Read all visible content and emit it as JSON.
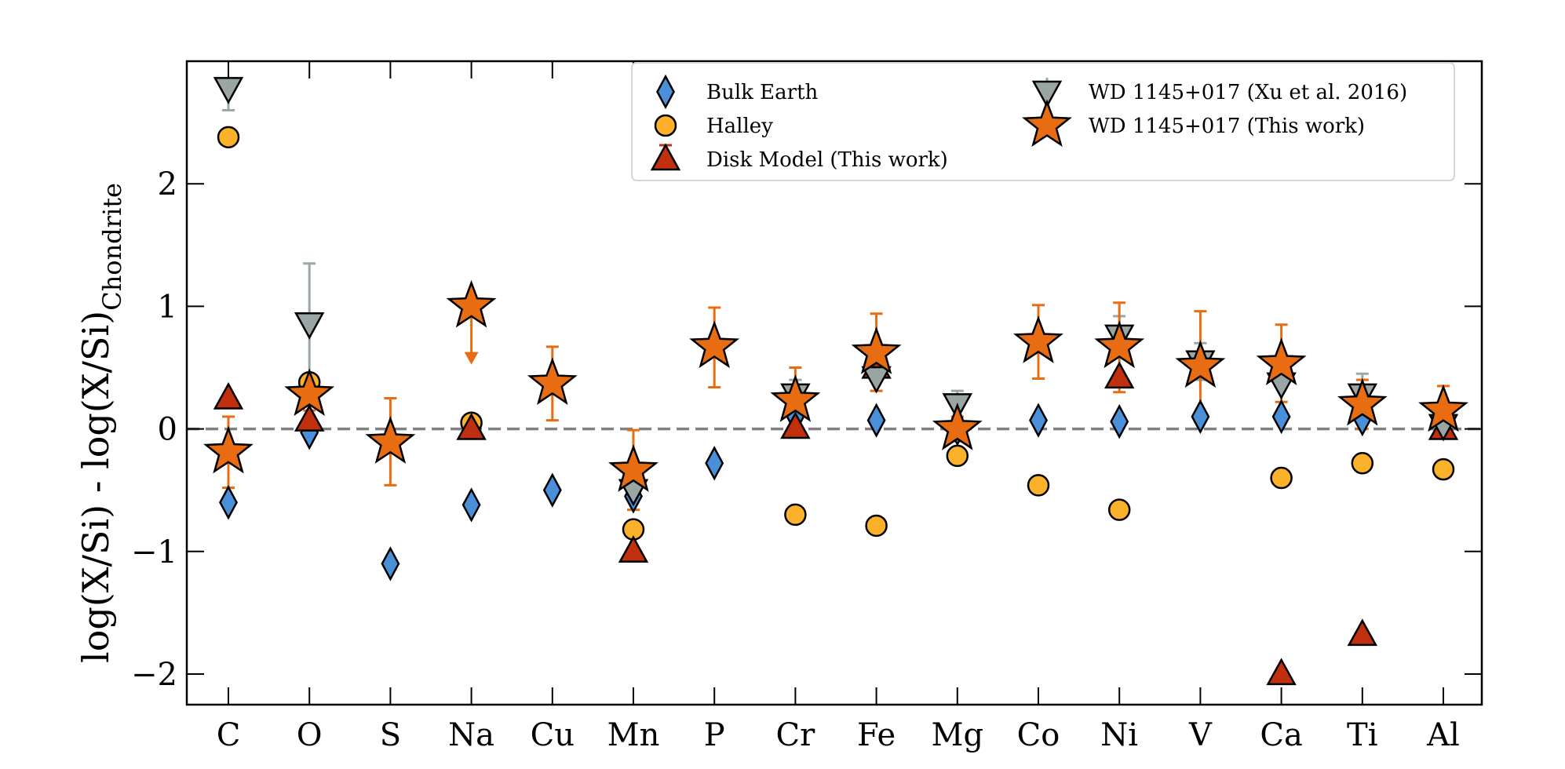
{
  "chart_data": {
    "type": "scatter",
    "ylabel_main": "log(X/Si) - log(X/Si)",
    "ylabel_sub": "Chondrite",
    "xlabel": "",
    "ylim": [
      -2.25,
      3.0
    ],
    "yticks": [
      -2,
      -1,
      0,
      1,
      2
    ],
    "ytick_labels": [
      "−2",
      "−1",
      "0",
      "1",
      "2"
    ],
    "reference_line": 0,
    "categories": [
      "C",
      "O",
      "S",
      "Na",
      "Cu",
      "Mn",
      "P",
      "Cr",
      "Fe",
      "Mg",
      "Co",
      "Ni",
      "V",
      "Ca",
      "Ti",
      "Al"
    ],
    "legend_position": "top-right",
    "legend": [
      "Bulk Earth",
      "Halley",
      "Disk Model (This work)",
      "WD 1145+017 (Xu et al. 2016)",
      "WD 1145+017 (This work)"
    ],
    "series": [
      {
        "name": "Bulk Earth",
        "marker": "diamond",
        "color": "#4a90d9",
        "points": [
          {
            "cat": "C",
            "y": -0.6
          },
          {
            "cat": "O",
            "y": -0.03
          },
          {
            "cat": "S",
            "y": -1.1
          },
          {
            "cat": "Na",
            "y": -0.62
          },
          {
            "cat": "Cu",
            "y": -0.5
          },
          {
            "cat": "Mn",
            "y": -0.55
          },
          {
            "cat": "P",
            "y": -0.28
          },
          {
            "cat": "Cr",
            "y": 0.1
          },
          {
            "cat": "Fe",
            "y": 0.07
          },
          {
            "cat": "Mg",
            "y": 0.0
          },
          {
            "cat": "Co",
            "y": 0.07
          },
          {
            "cat": "Ni",
            "y": 0.06
          },
          {
            "cat": "V",
            "y": 0.1
          },
          {
            "cat": "Ca",
            "y": 0.1
          },
          {
            "cat": "Ti",
            "y": 0.08
          },
          {
            "cat": "Al",
            "y": 0.1
          }
        ]
      },
      {
        "name": "Halley",
        "marker": "circle",
        "color": "#fbb12a",
        "points": [
          {
            "cat": "C",
            "y": 2.38
          },
          {
            "cat": "O",
            "y": 0.38
          },
          {
            "cat": "Na",
            "y": 0.05
          },
          {
            "cat": "Mn",
            "y": -0.82
          },
          {
            "cat": "Cr",
            "y": -0.7
          },
          {
            "cat": "Fe",
            "y": -0.79
          },
          {
            "cat": "Mg",
            "y": -0.22
          },
          {
            "cat": "Co",
            "y": -0.46
          },
          {
            "cat": "Ni",
            "y": -0.66
          },
          {
            "cat": "Ca",
            "y": -0.4
          },
          {
            "cat": "Ti",
            "y": -0.28
          },
          {
            "cat": "Al",
            "y": -0.33
          }
        ]
      },
      {
        "name": "Disk Model (This work)",
        "marker": "triangle-up",
        "color": "#c0300f",
        "points": [
          {
            "cat": "C",
            "y": 0.25
          },
          {
            "cat": "O",
            "y": 0.07
          },
          {
            "cat": "Na",
            "y": 0.0
          },
          {
            "cat": "Mn",
            "y": -1.0
          },
          {
            "cat": "Cr",
            "y": 0.01
          },
          {
            "cat": "Fe",
            "y": 0.5
          },
          {
            "cat": "Ni",
            "y": 0.42
          },
          {
            "cat": "Ca",
            "y": -2.0
          },
          {
            "cat": "Ti",
            "y": -1.68
          },
          {
            "cat": "Al",
            "y": 0.0
          }
        ]
      },
      {
        "name": "WD 1145+017 (Xu et al. 2016)",
        "marker": "triangle-down",
        "color": "#9aa6a4",
        "err_color": "#98a8a5",
        "points": [
          {
            "cat": "C",
            "y": 2.78,
            "lo": 2.6,
            "hi": 2.8
          },
          {
            "cat": "O",
            "y": 0.86,
            "lo": 0.35,
            "hi": 1.35
          },
          {
            "cat": "Mn",
            "y": -0.5
          },
          {
            "cat": "Cr",
            "y": 0.28,
            "lo": 0.15,
            "hi": 0.4
          },
          {
            "cat": "Fe",
            "y": 0.42
          },
          {
            "cat": "Mg",
            "y": 0.2,
            "lo": 0.1,
            "hi": 0.31
          },
          {
            "cat": "Ni",
            "y": 0.76,
            "lo": 0.6,
            "hi": 0.92
          },
          {
            "cat": "V",
            "y": 0.55,
            "lo": 0.4,
            "hi": 0.7
          },
          {
            "cat": "Ca",
            "y": 0.37
          },
          {
            "cat": "Ti",
            "y": 0.28,
            "lo": 0.12,
            "hi": 0.45
          },
          {
            "cat": "Al",
            "y": 0.03
          }
        ]
      },
      {
        "name": "WD 1145+017 (This work)",
        "marker": "star",
        "color": "#e86c12",
        "err_color": "#e86c12",
        "points": [
          {
            "cat": "C",
            "y": -0.19,
            "lo": -0.48,
            "hi": 0.1
          },
          {
            "cat": "O",
            "y": 0.28,
            "lo": 0.15,
            "hi": 0.4
          },
          {
            "cat": "S",
            "y": -0.11,
            "lo": -0.46,
            "hi": 0.25
          },
          {
            "cat": "Na",
            "y": 1.0,
            "upper_limit": true,
            "arrow_to": 0.55
          },
          {
            "cat": "Cu",
            "y": 0.37,
            "lo": 0.07,
            "hi": 0.67
          },
          {
            "cat": "Mn",
            "y": -0.34,
            "lo": -0.66,
            "hi": -0.01
          },
          {
            "cat": "P",
            "y": 0.67,
            "lo": 0.34,
            "hi": 0.99
          },
          {
            "cat": "Cr",
            "y": 0.23,
            "lo": -0.05,
            "hi": 0.5
          },
          {
            "cat": "Fe",
            "y": 0.62,
            "lo": 0.31,
            "hi": 0.94
          },
          {
            "cat": "Mg",
            "y": 0.0,
            "lo": -0.1,
            "hi": 0.1
          },
          {
            "cat": "Co",
            "y": 0.71,
            "lo": 0.41,
            "hi": 1.01
          },
          {
            "cat": "Ni",
            "y": 0.67,
            "lo": 0.3,
            "hi": 1.03
          },
          {
            "cat": "V",
            "y": 0.51,
            "lo": 0.06,
            "hi": 0.96
          },
          {
            "cat": "Ca",
            "y": 0.53,
            "lo": 0.22,
            "hi": 0.85
          },
          {
            "cat": "Ti",
            "y": 0.2,
            "lo": 0.0,
            "hi": 0.4
          },
          {
            "cat": "Al",
            "y": 0.15,
            "lo": -0.05,
            "hi": 0.35
          }
        ]
      }
    ]
  }
}
